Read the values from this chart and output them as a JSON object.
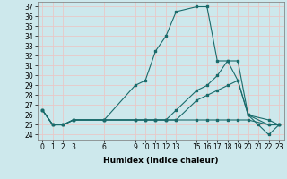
{
  "xlabel": "Humidex (Indice chaleur)",
  "bg_color": "#cde8ec",
  "grid_color": "#e8c8c8",
  "line_color": "#1a6b6b",
  "xtick_positions": [
    0,
    1,
    2,
    3,
    6,
    9,
    10,
    11,
    12,
    13,
    15,
    16,
    17,
    18,
    19,
    20,
    21,
    22,
    23
  ],
  "xtick_labels": [
    "0",
    "1",
    "2",
    "3",
    "6",
    "9",
    "10",
    "11",
    "12",
    "13",
    "15",
    "16",
    "17",
    "18",
    "19",
    "20",
    "21",
    "22",
    "23"
  ],
  "ytick_positions": [
    24,
    25,
    26,
    27,
    28,
    29,
    30,
    31,
    32,
    33,
    34,
    35,
    36,
    37
  ],
  "ytick_labels": [
    "24",
    "25",
    "26",
    "27",
    "28",
    "29",
    "30",
    "31",
    "32",
    "33",
    "34",
    "35",
    "36",
    "37"
  ],
  "xlim": [
    -0.5,
    23.5
  ],
  "ylim": [
    23.5,
    37.5
  ],
  "series": [
    {
      "x": [
        0,
        1,
        2,
        3,
        6,
        9,
        10,
        11,
        12,
        13,
        15,
        16,
        17,
        18,
        19,
        20,
        21,
        22,
        23
      ],
      "y": [
        26.5,
        25.0,
        25.0,
        25.5,
        25.5,
        29.0,
        29.5,
        32.5,
        34.0,
        36.5,
        37.0,
        37.0,
        31.5,
        31.5,
        29.5,
        26.0,
        25.0,
        24.0,
        25.0
      ]
    },
    {
      "x": [
        0,
        1,
        2,
        3,
        6,
        9,
        10,
        11,
        12,
        13,
        15,
        16,
        17,
        18,
        19,
        20,
        22,
        23
      ],
      "y": [
        26.5,
        25.0,
        25.0,
        25.5,
        25.5,
        25.5,
        25.5,
        25.5,
        25.5,
        26.5,
        28.5,
        29.0,
        30.0,
        31.5,
        31.5,
        26.0,
        25.5,
        25.0
      ]
    },
    {
      "x": [
        0,
        1,
        2,
        3,
        6,
        9,
        10,
        11,
        12,
        13,
        15,
        16,
        17,
        18,
        19,
        20,
        22,
        23
      ],
      "y": [
        26.5,
        25.0,
        25.0,
        25.5,
        25.5,
        25.5,
        25.5,
        25.5,
        25.5,
        25.5,
        27.5,
        28.0,
        28.5,
        29.0,
        29.5,
        26.0,
        25.0,
        25.0
      ]
    },
    {
      "x": [
        0,
        1,
        2,
        3,
        6,
        9,
        10,
        11,
        12,
        13,
        15,
        16,
        17,
        18,
        19,
        20,
        22,
        23
      ],
      "y": [
        26.5,
        25.0,
        25.0,
        25.5,
        25.5,
        25.5,
        25.5,
        25.5,
        25.5,
        25.5,
        25.5,
        25.5,
        25.5,
        25.5,
        25.5,
        25.5,
        25.0,
        25.0
      ]
    }
  ]
}
